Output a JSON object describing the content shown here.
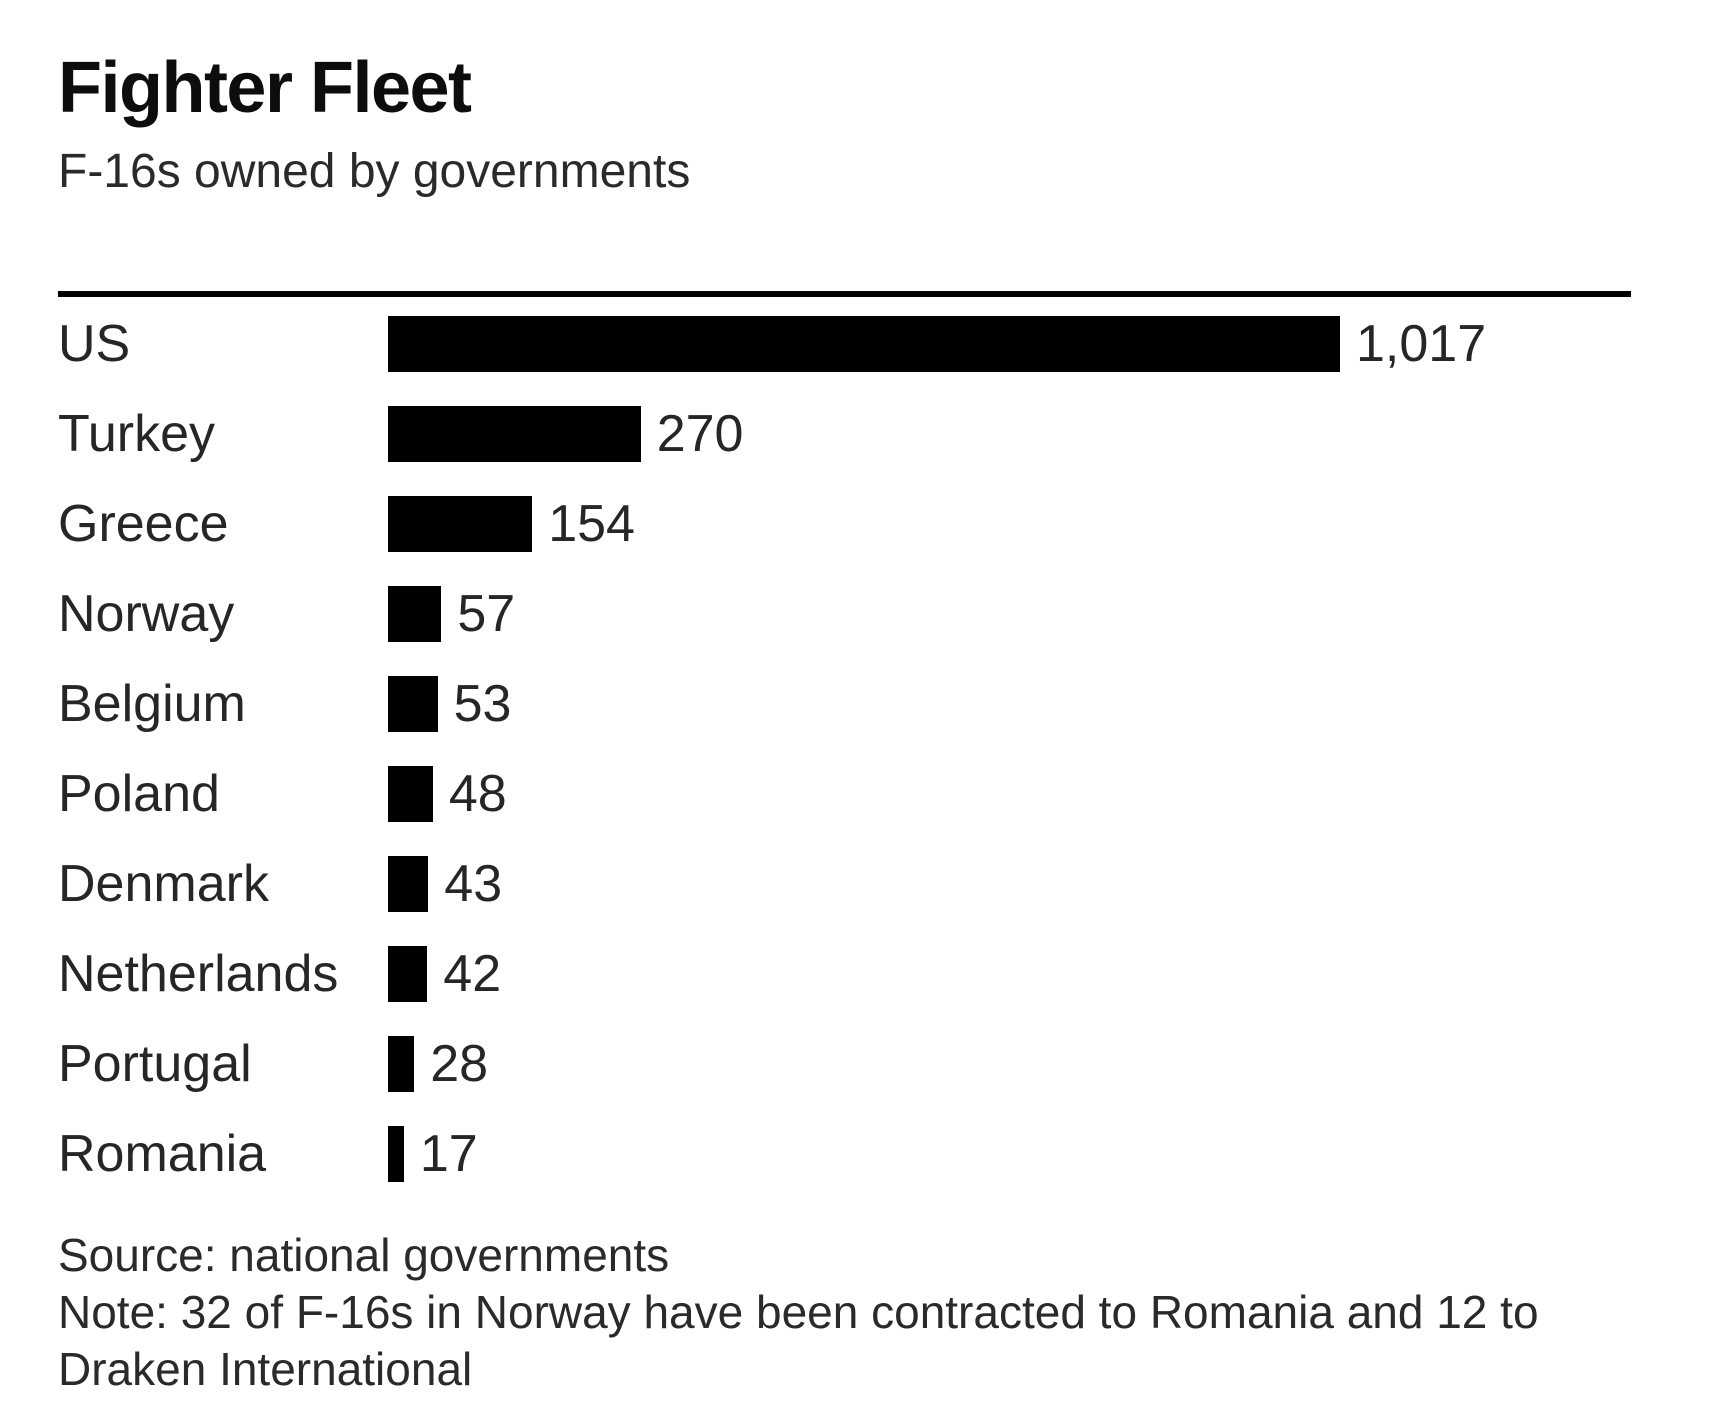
{
  "header": {
    "title": "Fighter Fleet",
    "subtitle": "F-16s owned by governments"
  },
  "footer": {
    "source": "Source: national governments",
    "note": "Note: 32 of F-16s in Norway have been contracted to Romania and 12 to Draken International"
  },
  "colors": {
    "background": "#ffffff",
    "bar": "#000000",
    "rule": "#000000",
    "title_text": "#0d0d0d",
    "body_text": "#2a2a2a"
  },
  "chart_data": {
    "type": "bar",
    "orientation": "horizontal",
    "title": "Fighter Fleet",
    "subtitle": "F-16s owned by governments",
    "categories": [
      "US",
      "Turkey",
      "Greece",
      "Norway",
      "Belgium",
      "Poland",
      "Denmark",
      "Netherlands",
      "Portugal",
      "Romania"
    ],
    "values": [
      1017,
      270,
      154,
      57,
      53,
      48,
      43,
      42,
      28,
      17
    ],
    "value_labels": [
      "1,017",
      "270",
      "154",
      "57",
      "53",
      "48",
      "43",
      "42",
      "28",
      "17"
    ],
    "xlabel": "",
    "ylabel": "",
    "xlim": [
      0,
      1017
    ],
    "grid": false,
    "legend": false,
    "bar_color": "#000000",
    "value_label_position": "right-of-bar"
  }
}
